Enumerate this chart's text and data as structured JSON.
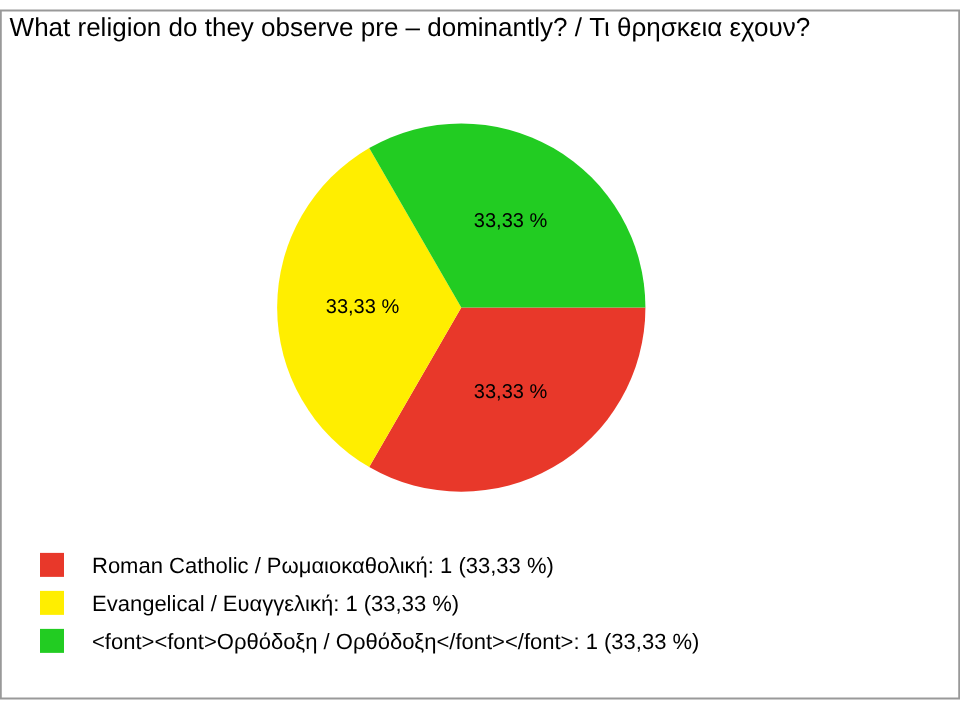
{
  "chart_data": {
    "type": "pie",
    "title": "What religion do they observe pre – dominantly? / Τι θρησκεια εχουν?",
    "categories": [
      "Roman Catholic / Ρωμαιοκαθολική: 1 (33,33 %)",
      "Evangelical / Ευαγγελική: 1 (33,33 %)",
      "<font><font>Ορθόδοξη / Ορθόδοξη</font></font>: 1 (33,33 %)"
    ],
    "values": [
      33.33,
      33.33,
      33.33
    ],
    "value_labels": [
      "33,33 %",
      "33,33 %",
      "33,33 %"
    ],
    "colors": [
      "#e8382a",
      "#ffee00",
      "#22cc22"
    ],
    "legend": "bottom left"
  }
}
